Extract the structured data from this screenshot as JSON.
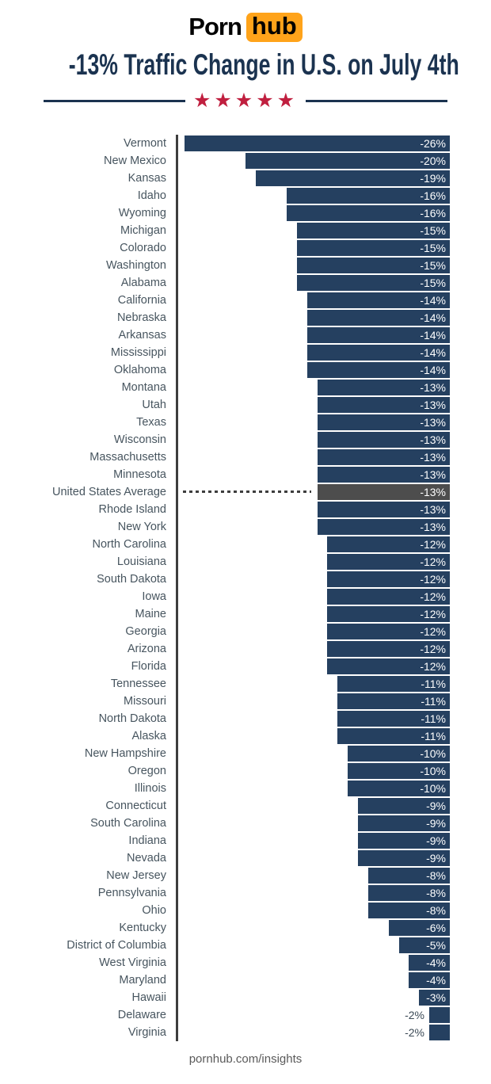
{
  "header": {
    "logo": {
      "porn": "Porn",
      "hub": "hub"
    },
    "title": "-13% Traffic Change in U.S. on July 4th",
    "stars": "★★★★★"
  },
  "footer": {
    "url": "pornhub.com/insights"
  },
  "colors": {
    "bar": "#254060",
    "average_bar": "#4d4d4d",
    "axis": "#3d3d3d",
    "label": "#47555f",
    "value_inside": "#ffffff",
    "value_outside": "#3c4a56",
    "title": "#1b3350",
    "stars": "#c01f3f",
    "logo_orange": "#ffa31a",
    "footer": "#5a5a5a"
  },
  "chart_data": {
    "type": "bar",
    "orientation": "horizontal",
    "title": "-13% Traffic Change in U.S. on July 4th",
    "unit": "%",
    "xlim": [
      -27,
      0
    ],
    "grid": false,
    "legend": null,
    "average_row_label": "United States Average",
    "rows": [
      {
        "label": "Vermont",
        "value": -26
      },
      {
        "label": "New Mexico",
        "value": -20
      },
      {
        "label": "Kansas",
        "value": -19
      },
      {
        "label": "Idaho",
        "value": -16
      },
      {
        "label": "Wyoming",
        "value": -16
      },
      {
        "label": "Michigan",
        "value": -15
      },
      {
        "label": "Colorado",
        "value": -15
      },
      {
        "label": "Washington",
        "value": -15
      },
      {
        "label": "Alabama",
        "value": -15
      },
      {
        "label": "California",
        "value": -14
      },
      {
        "label": "Nebraska",
        "value": -14
      },
      {
        "label": "Arkansas",
        "value": -14
      },
      {
        "label": "Mississippi",
        "value": -14
      },
      {
        "label": "Oklahoma",
        "value": -14
      },
      {
        "label": "Montana",
        "value": -13
      },
      {
        "label": "Utah",
        "value": -13
      },
      {
        "label": "Texas",
        "value": -13
      },
      {
        "label": "Wisconsin",
        "value": -13
      },
      {
        "label": "Massachusetts",
        "value": -13
      },
      {
        "label": "Minnesota",
        "value": -13
      },
      {
        "label": "United States Average",
        "value": -13,
        "is_average": true
      },
      {
        "label": "Rhode Island",
        "value": -13
      },
      {
        "label": "New York",
        "value": -13
      },
      {
        "label": "North Carolina",
        "value": -12
      },
      {
        "label": "Louisiana",
        "value": -12
      },
      {
        "label": "South Dakota",
        "value": -12
      },
      {
        "label": "Iowa",
        "value": -12
      },
      {
        "label": "Maine",
        "value": -12
      },
      {
        "label": "Georgia",
        "value": -12
      },
      {
        "label": "Arizona",
        "value": -12
      },
      {
        "label": "Florida",
        "value": -12
      },
      {
        "label": "Tennessee",
        "value": -11
      },
      {
        "label": "Missouri",
        "value": -11
      },
      {
        "label": "North Dakota",
        "value": -11
      },
      {
        "label": "Alaska",
        "value": -11
      },
      {
        "label": "New Hampshire",
        "value": -10
      },
      {
        "label": "Oregon",
        "value": -10
      },
      {
        "label": "Illinois",
        "value": -10
      },
      {
        "label": "Connecticut",
        "value": -9
      },
      {
        "label": "South Carolina",
        "value": -9
      },
      {
        "label": "Indiana",
        "value": -9
      },
      {
        "label": "Nevada",
        "value": -9
      },
      {
        "label": "New Jersey",
        "value": -8
      },
      {
        "label": "Pennsylvania",
        "value": -8
      },
      {
        "label": "Ohio",
        "value": -8
      },
      {
        "label": "Kentucky",
        "value": -6
      },
      {
        "label": "District of Columbia",
        "value": -5
      },
      {
        "label": "West Virginia",
        "value": -4
      },
      {
        "label": "Maryland",
        "value": -4
      },
      {
        "label": "Hawaii",
        "value": -3
      },
      {
        "label": "Delaware",
        "value": -2
      },
      {
        "label": "Virginia",
        "value": -2
      }
    ]
  }
}
